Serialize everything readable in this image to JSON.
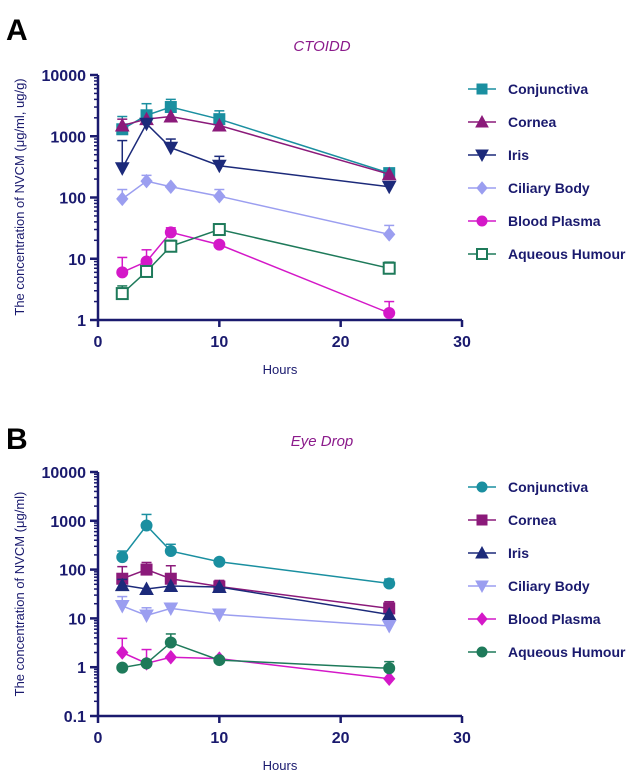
{
  "chart_data": [
    {
      "type": "line",
      "panel_label": "A",
      "title": "CTOIDD",
      "xlabel": "Hours",
      "ylabel": "The concentration of NVCM (μg/ml, ug/g)",
      "xlim": [
        0,
        30
      ],
      "ylim": [
        1,
        10000
      ],
      "yscale": "log",
      "xticks": [
        0,
        10,
        20,
        30
      ],
      "yticks": [
        1,
        10,
        100,
        1000,
        10000
      ],
      "ytick_labels": [
        "1",
        "10",
        "100",
        "1000",
        "10000"
      ],
      "legend_position": "right",
      "x": [
        2,
        4,
        6,
        10,
        24
      ],
      "series": [
        {
          "name": "Conjunctiva",
          "color": "#1a8fa0",
          "marker": "square",
          "filled": true,
          "values": [
            1300,
            2200,
            3000,
            1900,
            250
          ],
          "err": [
            800,
            1200,
            1000,
            700,
            40
          ]
        },
        {
          "name": "Cornea",
          "color": "#8b1a7a",
          "marker": "triangle-up",
          "filled": true,
          "values": [
            1500,
            1900,
            2100,
            1500,
            240
          ],
          "err": [
            400,
            0,
            0,
            0,
            0
          ]
        },
        {
          "name": "Iris",
          "color": "#1c2a7a",
          "marker": "triangle-down",
          "filled": true,
          "values": [
            300,
            1600,
            650,
            330,
            150
          ],
          "err": [
            550,
            0,
            250,
            140,
            0
          ]
        },
        {
          "name": "Ciliary Body",
          "color": "#9b9ef0",
          "marker": "diamond",
          "filled": true,
          "values": [
            95,
            185,
            150,
            105,
            25
          ],
          "err": [
            40,
            45,
            0,
            30,
            10
          ]
        },
        {
          "name": "Blood Plasma",
          "color": "#d418c8",
          "marker": "circle",
          "filled": true,
          "values": [
            6,
            9,
            27,
            17,
            1.3
          ],
          "err": [
            4.5,
            5,
            5,
            0,
            0.7
          ]
        },
        {
          "name": "Aqueous Humour",
          "color": "#1e7a5a",
          "marker": "square",
          "filled": false,
          "values": [
            2.7,
            6.2,
            16,
            30,
            7
          ],
          "err": [
            0.9,
            0,
            4,
            0,
            1.8
          ]
        }
      ]
    },
    {
      "type": "line",
      "panel_label": "B",
      "title": "Eye Drop",
      "xlabel": "Hours",
      "ylabel": "The concentration of NVCM (μg/ml)",
      "xlim": [
        0,
        30
      ],
      "ylim": [
        0.1,
        10000
      ],
      "yscale": "log",
      "xticks": [
        0,
        10,
        20,
        30
      ],
      "yticks": [
        0.1,
        1,
        10,
        100,
        1000,
        10000
      ],
      "ytick_labels": [
        "0.1",
        "1",
        "10",
        "100",
        "1000",
        "10000"
      ],
      "legend_position": "right",
      "x": [
        2,
        4,
        6,
        10,
        24
      ],
      "series": [
        {
          "name": "Conjunctiva",
          "color": "#1a8fa0",
          "marker": "circle",
          "filled": true,
          "values": [
            180,
            800,
            240,
            145,
            52
          ],
          "err": [
            60,
            550,
            90,
            0,
            12
          ]
        },
        {
          "name": "Cornea",
          "color": "#8b1a7a",
          "marker": "square",
          "filled": true,
          "values": [
            65,
            100,
            65,
            45,
            16
          ],
          "err": [
            50,
            40,
            55,
            15,
            6
          ]
        },
        {
          "name": "Iris",
          "color": "#1c2a7a",
          "marker": "triangle-up",
          "filled": true,
          "values": [
            48,
            40,
            46,
            44,
            12
          ],
          "err": [
            15,
            0,
            0,
            0,
            0
          ]
        },
        {
          "name": "Ciliary Body",
          "color": "#9b9ef0",
          "marker": "triangle-down",
          "filled": true,
          "values": [
            18,
            11.5,
            16,
            12,
            7
          ],
          "err": [
            10,
            5,
            0,
            3,
            0
          ]
        },
        {
          "name": "Blood Plasma",
          "color": "#d418c8",
          "marker": "diamond",
          "filled": true,
          "values": [
            2,
            1.2,
            1.6,
            1.5,
            0.58
          ],
          "err": [
            1.9,
            1.1,
            0,
            0,
            0
          ]
        },
        {
          "name": "Aqueous Humour",
          "color": "#1e7a5a",
          "marker": "circle",
          "filled": true,
          "values": [
            0.98,
            1.2,
            3.2,
            1.4,
            0.95
          ],
          "err": [
            0,
            0,
            1.6,
            0,
            0.35
          ]
        }
      ]
    }
  ]
}
